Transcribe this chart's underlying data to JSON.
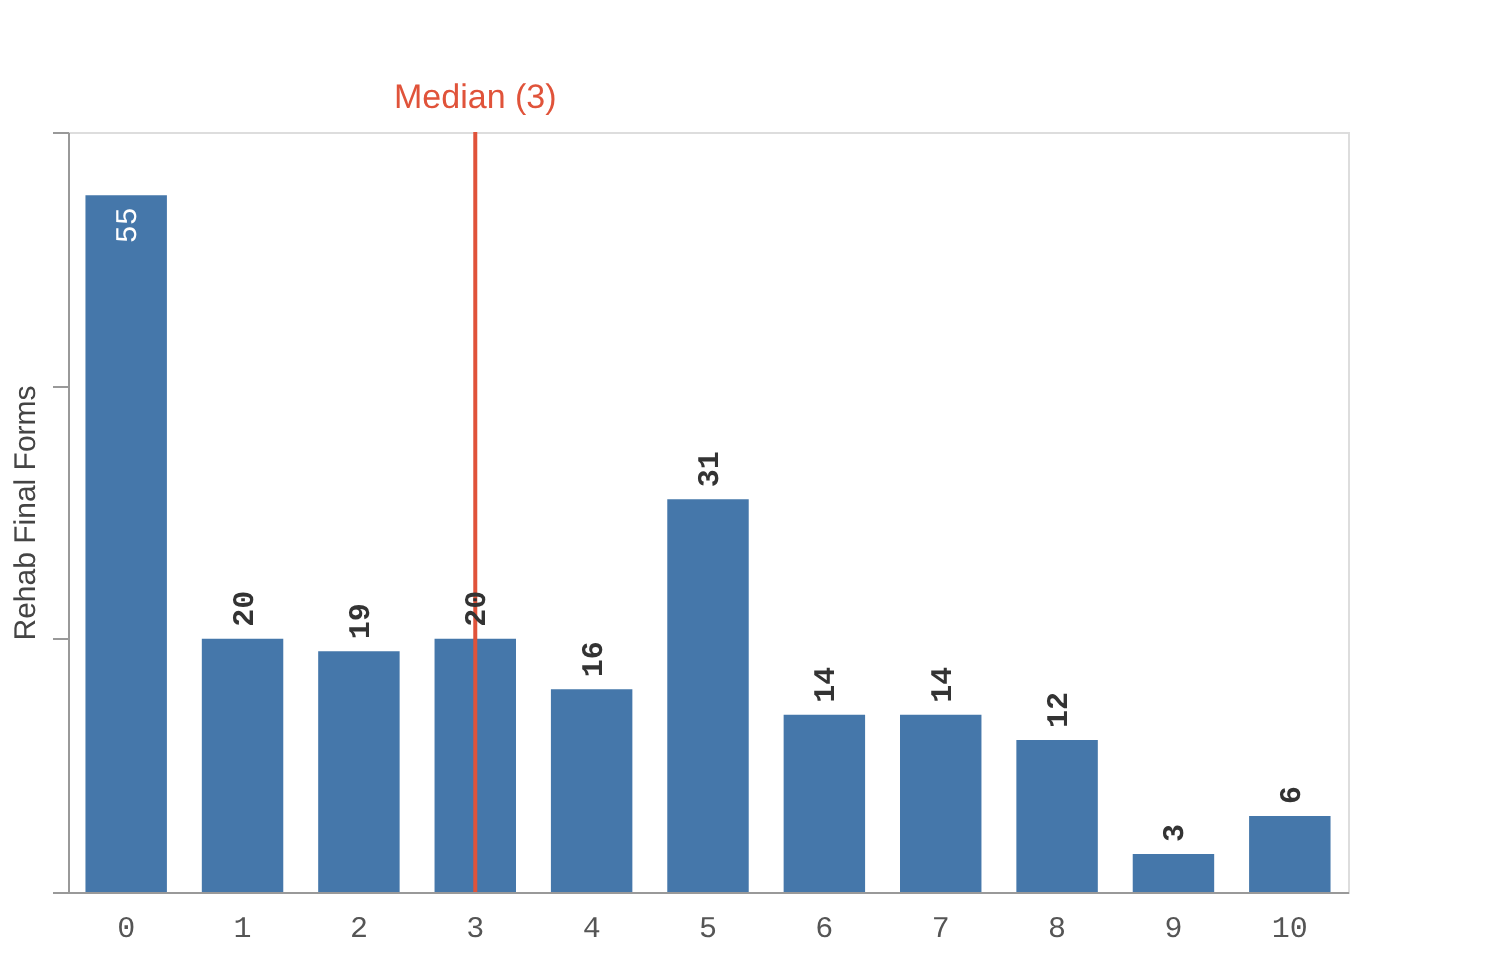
{
  "chart_data": {
    "type": "bar",
    "ylabel": "Rehab Final Forms",
    "categories": [
      "0",
      "1",
      "2",
      "3",
      "4",
      "5",
      "6",
      "7",
      "8",
      "9",
      "10"
    ],
    "values": [
      55,
      20,
      19,
      20,
      16,
      31,
      14,
      14,
      12,
      3,
      6
    ],
    "color": "#4577aa",
    "ylim": [
      0,
      60
    ],
    "yticks": [
      {
        "value": 0,
        "label": null
      },
      {
        "value": 20,
        "label": null
      },
      {
        "value": 40,
        "label": null
      },
      {
        "value": 60,
        "label": null
      }
    ],
    "data_labels": true,
    "grid": false,
    "ref_lines": [
      {
        "axis": "x",
        "value": "3",
        "label": "Median (3)",
        "color": "#e0533a"
      }
    ]
  }
}
